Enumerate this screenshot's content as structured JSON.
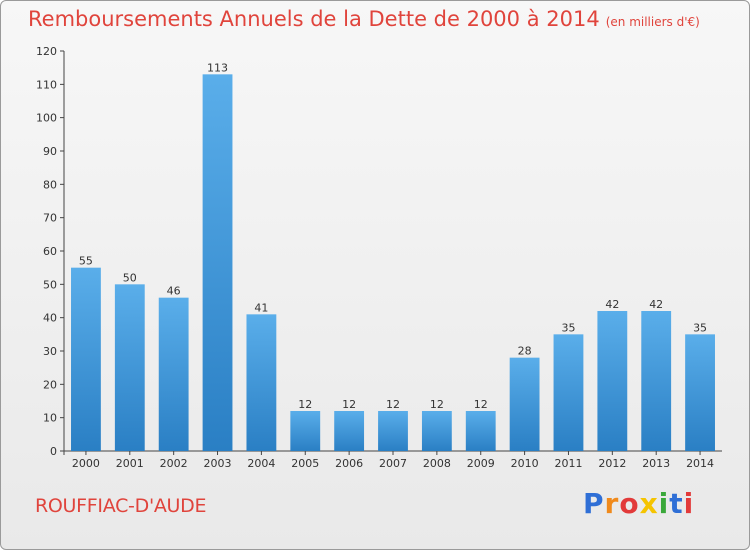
{
  "header": {
    "title": "Remboursements Annuels de la Dette de 2000 à 2014",
    "subtitle": "(en milliers d'€)"
  },
  "footer": {
    "commune": "ROUFFIAC-D'AUDE",
    "logo_text": "Proxiti"
  },
  "colors": {
    "title": "#e0443c",
    "bar_light": "#5aaeea",
    "bar_dark": "#2a7fc4"
  },
  "chart_data": {
    "type": "bar",
    "title": "Remboursements Annuels de la Dette de 2000 à 2014",
    "subtitle": "(en milliers d'€)",
    "categories": [
      "2000",
      "2001",
      "2002",
      "2003",
      "2004",
      "2005",
      "2006",
      "2007",
      "2008",
      "2009",
      "2010",
      "2011",
      "2012",
      "2013",
      "2014"
    ],
    "values": [
      55,
      50,
      46,
      113,
      41,
      12,
      12,
      12,
      12,
      12,
      28,
      35,
      42,
      42,
      35
    ],
    "ylim": [
      0,
      120
    ],
    "yticks": [
      0,
      10,
      20,
      30,
      40,
      50,
      60,
      70,
      80,
      90,
      100,
      110,
      120
    ],
    "grid": false,
    "data_labels": true
  }
}
